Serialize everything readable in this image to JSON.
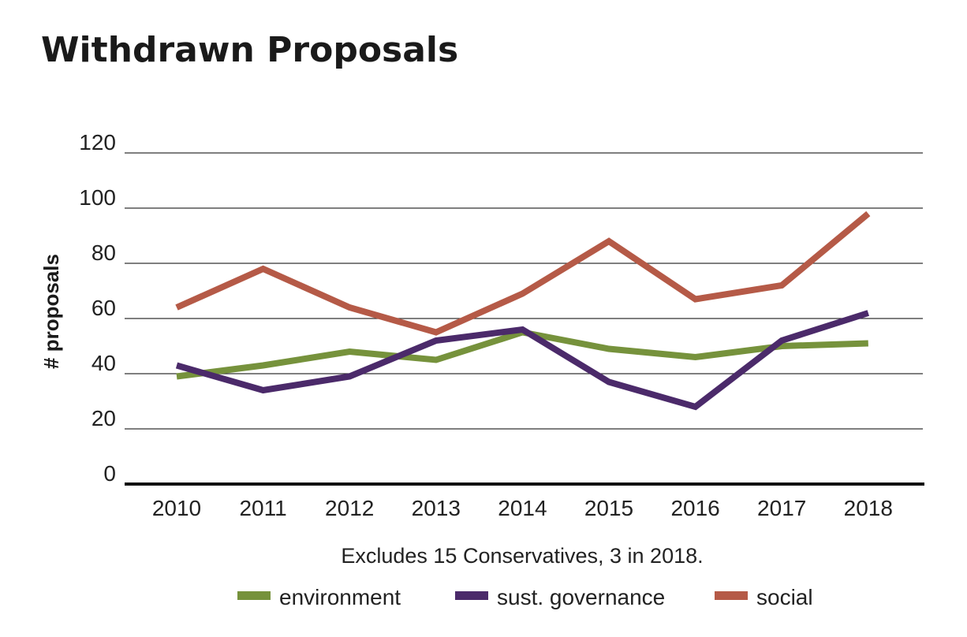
{
  "chart_data": {
    "type": "line",
    "title": "Withdrawn Proposals",
    "xlabel": "",
    "ylabel": "# proposals",
    "note": "Excludes 15 Conservatives, 3 in 2018.",
    "categories": [
      "2010",
      "2011",
      "2012",
      "2013",
      "2014",
      "2015",
      "2016",
      "2017",
      "2018"
    ],
    "ylim": [
      0,
      120
    ],
    "yticks": [
      0,
      20,
      40,
      60,
      80,
      100,
      120
    ],
    "grid": true,
    "legend_position": "bottom",
    "series": [
      {
        "name": "environment",
        "color": "#76923c",
        "values": [
          39,
          43,
          48,
          45,
          55,
          49,
          46,
          50,
          51
        ]
      },
      {
        "name": "sust. governance",
        "color": "#4b2a6a",
        "values": [
          43,
          34,
          39,
          52,
          56,
          37,
          28,
          52,
          62
        ]
      },
      {
        "name": "social",
        "color": "#b55a47",
        "values": [
          64,
          78,
          64,
          55,
          69,
          88,
          67,
          72,
          98
        ]
      }
    ]
  }
}
